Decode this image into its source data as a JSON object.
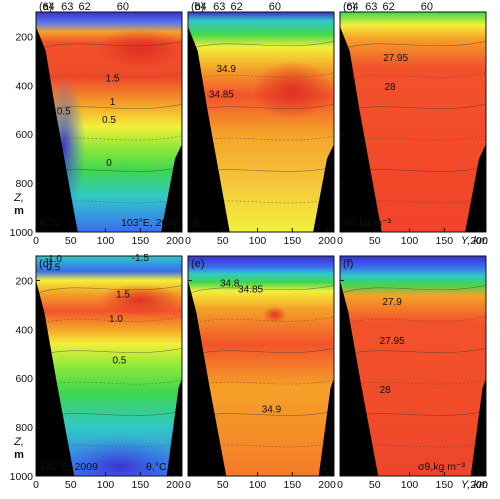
{
  "chart_data": [
    {
      "id": "a",
      "type": "heatmap",
      "panel_label": "(a)",
      "variable": "θ,°C",
      "annotation": "103°E, 2007",
      "lat_ticks": [
        "64",
        "63",
        "62",
        "60"
      ],
      "xlim": [
        0,
        210
      ],
      "ylim": [
        1000,
        100
      ],
      "x_ticks": [
        "0",
        "50",
        "100",
        "150",
        "200"
      ],
      "y_ticks": [
        "200",
        "400",
        "600",
        "800",
        "1000"
      ],
      "contour_labels": [
        {
          "text": "1.5",
          "x": 110,
          "y": 385
        },
        {
          "text": "1",
          "x": 110,
          "y": 480
        },
        {
          "text": "0.5",
          "x": 105,
          "y": 555
        },
        {
          "text": "0.5",
          "x": 40,
          "y": 520
        },
        {
          "text": "0",
          "x": 105,
          "y": 730
        }
      ]
    },
    {
      "id": "b",
      "type": "heatmap",
      "panel_label": "(b)",
      "variable": "S",
      "lat_ticks": [
        "64",
        "63",
        "62",
        "60"
      ],
      "xlim": [
        0,
        210
      ],
      "ylim": [
        1000,
        100
      ],
      "x_ticks": [
        "0",
        "50",
        "100",
        "150",
        "200"
      ],
      "y_ticks": [
        "200",
        "400",
        "600",
        "800",
        "1000"
      ],
      "contour_labels": [
        {
          "text": "34.9",
          "x": 55,
          "y": 345
        },
        {
          "text": "34.85",
          "x": 48,
          "y": 450
        }
      ]
    },
    {
      "id": "c",
      "type": "heatmap",
      "panel_label": "(c)",
      "variable": "σθ,kg m⁻³",
      "lat_ticks": [
        "64",
        "63",
        "62",
        "60"
      ],
      "xlim": [
        0,
        210
      ],
      "ylim": [
        1000,
        100
      ],
      "x_ticks": [
        "0",
        "50",
        "100",
        "150",
        "200"
      ],
      "y_ticks": [
        "200",
        "400",
        "600",
        "800",
        "1000"
      ],
      "x_axis_label": "Y, km",
      "contour_labels": [
        {
          "text": "27.95",
          "x": 80,
          "y": 300
        },
        {
          "text": "28",
          "x": 72,
          "y": 420
        }
      ]
    },
    {
      "id": "d",
      "type": "heatmap",
      "panel_label": "(d)",
      "variable": "θ,°C",
      "annotation": "142°E, 2009",
      "xlim": [
        0,
        210
      ],
      "ylim": [
        1000,
        100
      ],
      "x_ticks": [
        "0",
        "50",
        "100",
        "150",
        "200"
      ],
      "y_ticks": [
        "200",
        "400",
        "600",
        "800",
        "1000"
      ],
      "contour_labels": [
        {
          "text": "-1.5",
          "x": 150,
          "y": 120
        },
        {
          "text": "-1.0",
          "x": 25,
          "y": 125
        },
        {
          "text": "0.5",
          "x": 25,
          "y": 160
        },
        {
          "text": "1.5",
          "x": 125,
          "y": 270
        },
        {
          "text": "1.0",
          "x": 115,
          "y": 370
        },
        {
          "text": "0.5",
          "x": 120,
          "y": 540
        }
      ]
    },
    {
      "id": "e",
      "type": "heatmap",
      "panel_label": "(e)",
      "variable": "S",
      "xlim": [
        0,
        210
      ],
      "ylim": [
        1000,
        100
      ],
      "x_ticks": [
        "0",
        "50",
        "100",
        "150",
        "200"
      ],
      "y_ticks": [
        "200",
        "400",
        "600",
        "800",
        "1000"
      ],
      "contour_labels": [
        {
          "text": "34.8",
          "x": 60,
          "y": 225
        },
        {
          "text": "34.85",
          "x": 90,
          "y": 250
        },
        {
          "text": "34.9",
          "x": 120,
          "y": 740
        }
      ]
    },
    {
      "id": "f",
      "type": "heatmap",
      "panel_label": "(f)",
      "variable": "σθ,kg m⁻³",
      "xlim": [
        0,
        210
      ],
      "ylim": [
        1000,
        100
      ],
      "x_ticks": [
        "0",
        "50",
        "100",
        "150",
        "200"
      ],
      "y_ticks": [
        "200",
        "400",
        "600",
        "800",
        "1000"
      ],
      "x_axis_label": "Y, km",
      "contour_labels": [
        {
          "text": "27.9",
          "x": 75,
          "y": 300
        },
        {
          "text": "27.95",
          "x": 75,
          "y": 460
        },
        {
          "text": "28",
          "x": 65,
          "y": 660
        }
      ]
    }
  ],
  "y_axis_label_top": "Z,",
  "y_axis_label_bottom": "m",
  "colors": {
    "cold": "#3a2fd0",
    "blue": "#3b6cf0",
    "cyan": "#31c8c8",
    "green": "#3fd64f",
    "yellow": "#f2f03a",
    "orange": "#f5a229",
    "red": "#f2532b",
    "hot": "#dd2b22",
    "topo": "#000000"
  }
}
